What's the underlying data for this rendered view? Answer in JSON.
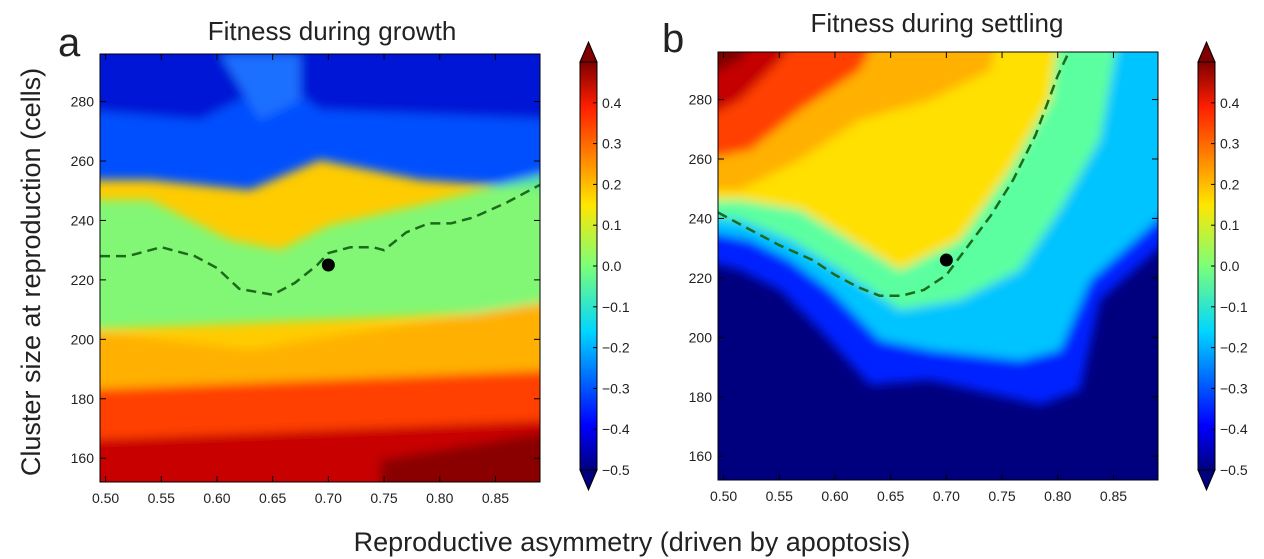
{
  "figure": {
    "ylabel": "Cluster size at reproduction (cells)",
    "xlabel": "Reproductive asymmetry (driven by apoptosis)"
  },
  "chart_data": [
    {
      "type": "heatmap",
      "panel_label": "a",
      "title": "Fitness during growth",
      "xlim": [
        0.495,
        0.89
      ],
      "ylim": [
        152,
        296
      ],
      "x_ticks": [
        "0.50",
        "0.55",
        "0.60",
        "0.65",
        "0.70",
        "0.75",
        "0.80",
        "0.85"
      ],
      "x_tick_values": [
        0.5,
        0.55,
        0.6,
        0.65,
        0.7,
        0.75,
        0.8,
        0.85
      ],
      "y_ticks": [
        "160",
        "180",
        "200",
        "220",
        "240",
        "260",
        "280"
      ],
      "y_tick_values": [
        160,
        180,
        200,
        220,
        240,
        260,
        280
      ],
      "colormap": "jet",
      "color_range": [
        -0.5,
        0.5
      ],
      "colorbar_ticks": [
        "0.4",
        "0.3",
        "0.2",
        "0.1",
        "0.0",
        "−0.1",
        "−0.2",
        "−0.3",
        "−0.4",
        "−0.5"
      ],
      "colorbar_tick_values": [
        0.4,
        0.3,
        0.2,
        0.1,
        0.0,
        -0.1,
        -0.2,
        -0.3,
        -0.4,
        -0.5
      ],
      "zero_contour": {
        "x": [
          0.495,
          0.52,
          0.55,
          0.58,
          0.6,
          0.62,
          0.635,
          0.65,
          0.67,
          0.69,
          0.7,
          0.72,
          0.74,
          0.75,
          0.77,
          0.79,
          0.81,
          0.83,
          0.86,
          0.89
        ],
        "y": [
          228,
          228,
          231,
          228,
          224,
          217,
          216,
          215,
          219,
          225,
          229,
          231,
          231,
          230,
          236,
          239,
          239,
          241,
          246,
          252
        ]
      },
      "marker": {
        "x": 0.7,
        "y": 225
      }
    },
    {
      "type": "heatmap",
      "panel_label": "b",
      "title": "Fitness during settling",
      "xlim": [
        0.495,
        0.89
      ],
      "ylim": [
        152,
        296
      ],
      "x_ticks": [
        "0.50",
        "0.55",
        "0.60",
        "0.65",
        "0.70",
        "0.75",
        "0.80",
        "0.85"
      ],
      "x_tick_values": [
        0.5,
        0.55,
        0.6,
        0.65,
        0.7,
        0.75,
        0.8,
        0.85
      ],
      "y_ticks": [
        "160",
        "180",
        "200",
        "220",
        "240",
        "260",
        "280"
      ],
      "y_tick_values": [
        160,
        180,
        200,
        220,
        240,
        260,
        280
      ],
      "colormap": "jet",
      "color_range": [
        -0.5,
        0.5
      ],
      "colorbar_ticks": [
        "0.4",
        "0.3",
        "0.2",
        "0.1",
        "0.0",
        "−0.1",
        "−0.2",
        "−0.3",
        "−0.4",
        "−0.5"
      ],
      "colorbar_tick_values": [
        0.4,
        0.3,
        0.2,
        0.1,
        0.0,
        -0.1,
        -0.2,
        -0.3,
        -0.4,
        -0.5
      ],
      "zero_contour": {
        "x": [
          0.495,
          0.52,
          0.55,
          0.58,
          0.6,
          0.62,
          0.64,
          0.66,
          0.68,
          0.7,
          0.72,
          0.74,
          0.76,
          0.78,
          0.8,
          0.81
        ],
        "y": [
          242,
          237,
          231,
          226,
          221,
          217,
          214,
          214,
          216,
          221,
          231,
          241,
          253,
          268,
          288,
          296
        ]
      },
      "marker": {
        "x": 0.7,
        "y": 226
      }
    }
  ]
}
